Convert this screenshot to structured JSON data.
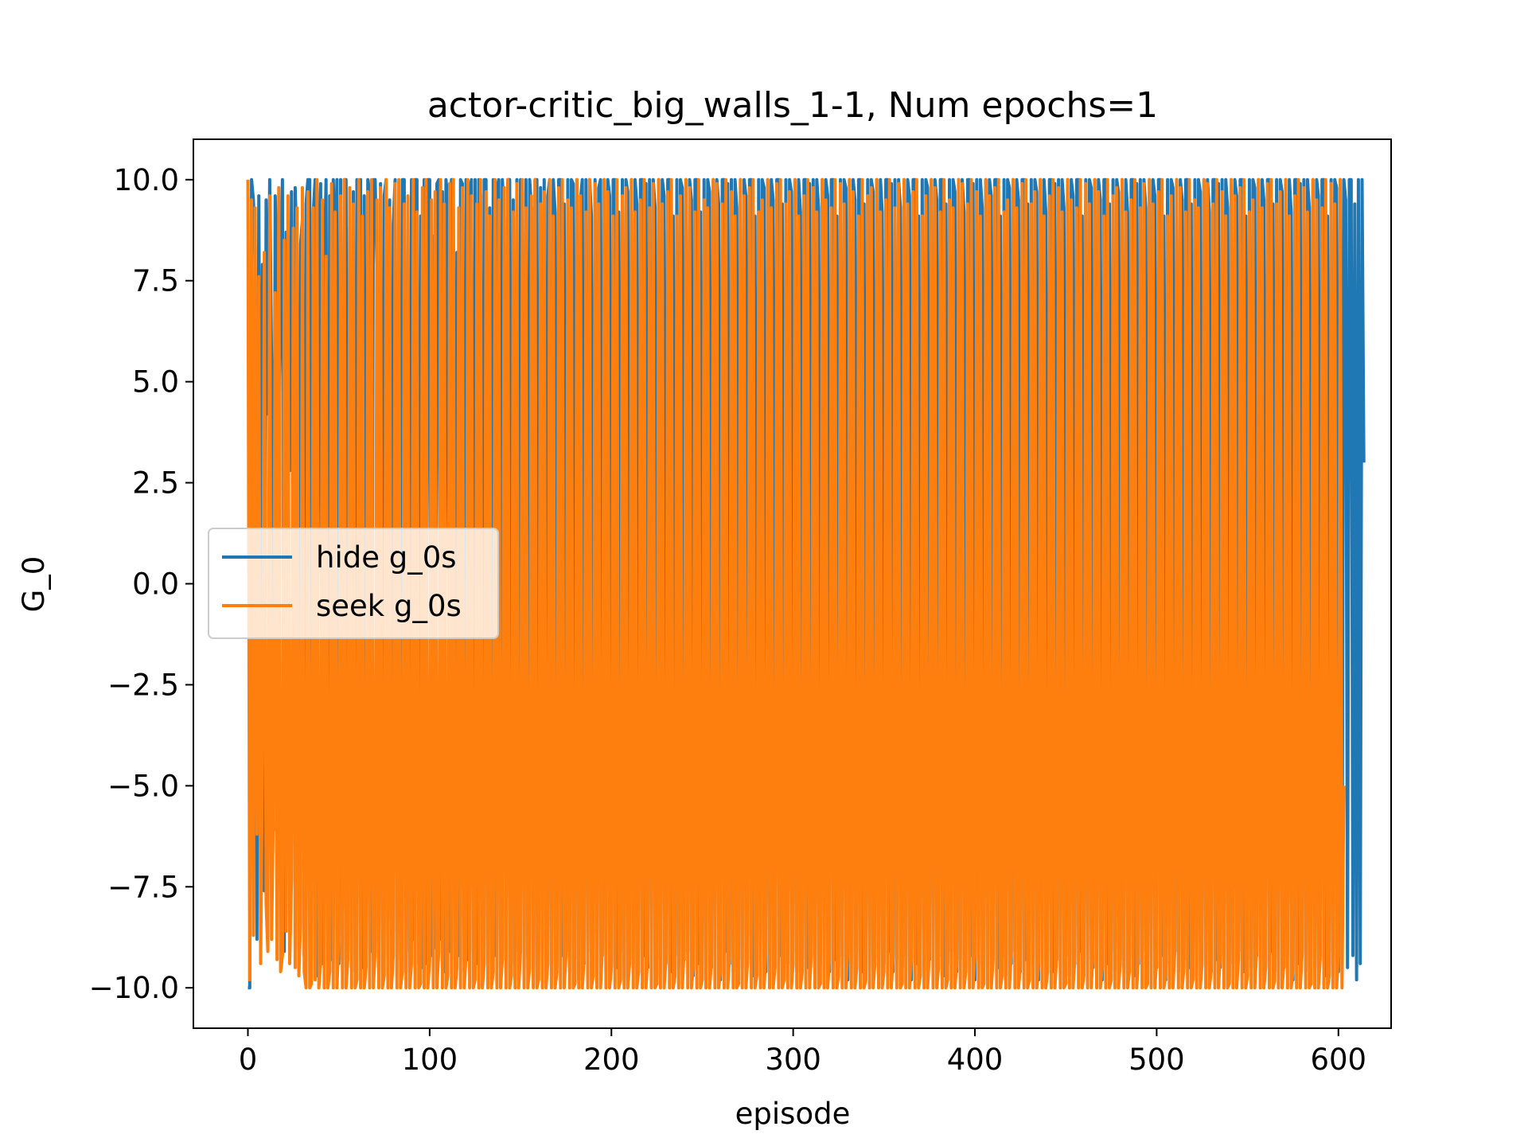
{
  "chart_data": {
    "type": "line",
    "title": "actor-critic_big_walls_1-1, Num epochs=1",
    "xlabel": "episode",
    "ylabel": "G_0",
    "xlim": [
      -30,
      629
    ],
    "ylim": [
      -11,
      11
    ],
    "xticks": [
      0,
      100,
      200,
      300,
      400,
      500,
      600
    ],
    "yticks": [
      10.0,
      7.5,
      5.0,
      2.5,
      0.0,
      -2.5,
      -5.0,
      -7.5,
      -10.0
    ],
    "xtick_labels": [
      "0",
      "100",
      "200",
      "300",
      "400",
      "500",
      "600"
    ],
    "ytick_labels": [
      "10.0",
      "7.5",
      "5.0",
      "2.5",
      "0.0",
      "−2.5",
      "−5.0",
      "−7.5",
      "−10.0"
    ],
    "legend_position": "center-left",
    "series": [
      {
        "name": "hide g_0s",
        "color": "#1f77b4",
        "x_start": 0,
        "x_step": 1,
        "values": [
          -10,
          -10,
          10,
          9.5,
          7.8,
          -8.8,
          9.6,
          -1.5,
          7.9,
          -7.6,
          9.5,
          4.2,
          10,
          5.5,
          -6.1,
          9.6,
          8,
          4.2,
          7.1,
          10,
          -9.1,
          8.7,
          8.6,
          2.8,
          9.7,
          -2.4,
          9.8,
          8.1,
          -9.1,
          8.4,
          9,
          -9.2,
          9.4,
          10,
          10,
          -8.3,
          9.2,
          10,
          -9.7,
          8.5,
          9.9,
          -9.4,
          7.6,
          10,
          -9,
          9.6,
          -9.3,
          10,
          7.5,
          10,
          -9.4,
          10,
          -9.3,
          10,
          10,
          -9.1,
          8.8,
          -7.8,
          9.7,
          -9.6,
          10,
          7.3,
          10,
          -9.5,
          9.6,
          -9.1,
          10,
          9.7,
          -9.1,
          10,
          10,
          7.7,
          -9.5,
          9.9,
          -9.4,
          9.6,
          10,
          -9.2,
          9.5,
          -8.3,
          8.9,
          10,
          -8.6,
          7.8,
          -9.3,
          10,
          10,
          -9.6,
          9.4,
          -9.1,
          10,
          -8.8,
          10,
          10,
          -9.4,
          9.1,
          -9.5,
          10,
          -9.4,
          10,
          10,
          -9.2,
          8.6,
          -9,
          9.9,
          10,
          -8.8,
          9.7,
          -9.6,
          10,
          9.5,
          -9.1,
          10,
          10,
          -9.3,
          8.2,
          -9.2,
          10,
          9.9,
          -9.6,
          10,
          -9.3,
          9.7,
          10,
          -9.1,
          10,
          -9.4,
          10,
          9.6,
          -8.9,
          10,
          10,
          -9.7,
          9.3,
          -9.5,
          10,
          -9.2,
          9.8,
          10,
          -9.6,
          10,
          9.1,
          -9.3,
          10,
          10,
          -9.4,
          9.5,
          -9.8,
          10,
          -9.1,
          10,
          9.7,
          -9.5,
          10,
          -9.2,
          10,
          9.3,
          -9.6,
          10,
          10,
          -9.1,
          9.8,
          -9.4,
          10,
          -9.3,
          9.6,
          10,
          -9.7,
          10,
          9.2,
          -9.5,
          10,
          10,
          -9.2,
          9.4,
          -9.1,
          10,
          -9.6,
          10,
          9.9,
          -9.3,
          10,
          -9.8,
          9.5,
          10,
          -9.4,
          10,
          -9.1,
          10,
          9.1,
          -9.7,
          10,
          -9.3,
          9.8,
          10,
          -9.2,
          10,
          -9.6,
          10,
          9.6,
          -9.4,
          10,
          10,
          -9.5,
          9.2,
          -9.1,
          10,
          -9.8,
          10,
          9.7,
          -9.3,
          10,
          -9.4,
          10,
          9.4,
          -9.6,
          10,
          10,
          -9.2,
          9.9,
          -9.5,
          10,
          -9.1,
          10,
          9.3,
          -9.7,
          10,
          -9.3,
          10,
          9.6,
          -9.4,
          10,
          10,
          -9.6,
          9.1,
          -9.2,
          10,
          -9.5,
          10,
          9.8,
          -9.3,
          10,
          -9.1,
          10,
          9.5,
          -9.7,
          10,
          10,
          -9.4,
          9.2,
          -9.6,
          10,
          -9.3,
          10,
          9.7,
          -9.5,
          10,
          -9.2,
          10,
          9.4,
          -9.8,
          10,
          10,
          -9.1,
          9.9,
          -9.4,
          10,
          -9.6,
          10,
          9.3,
          -9.3,
          10,
          -9.5,
          10,
          9.6,
          -9.2,
          10,
          10,
          -9.7,
          9.1,
          -9.4,
          10,
          -9.1,
          10,
          9.8,
          -9.6,
          10,
          -9.3,
          10,
          9.5,
          -9.5,
          10,
          10,
          -9.2,
          9.4,
          -9.8,
          10,
          -9.4,
          10,
          9.7,
          -9.1,
          10,
          -9.6,
          10,
          9.2,
          -9.3,
          10,
          10,
          -9.5,
          9.9,
          -9.2,
          10,
          -9.7,
          10,
          9.3,
          -9.4,
          10,
          -9.1,
          10,
          9.6,
          -9.6,
          10,
          10,
          -9.3,
          9.1,
          -9.5,
          10,
          -9.2,
          10,
          9.8,
          -9.8,
          10,
          -9.4,
          10,
          9.5,
          -9.1,
          10,
          10,
          -9.6,
          9.4,
          -9.3,
          10,
          -9.5,
          10,
          9.7,
          -9.2,
          10,
          -9.7,
          10,
          9.2,
          -9.4,
          10,
          10,
          -9.1,
          9.9,
          -9.6,
          10,
          -9.3,
          10,
          9.3,
          -9.5,
          10,
          -9.2,
          10,
          9.6,
          -9.8,
          10,
          10,
          -9.4,
          9.1,
          -9.1,
          10,
          -9.6,
          10,
          9.8,
          -9.3,
          10,
          -9.5,
          10,
          9.5,
          -9.2,
          10,
          10,
          -9.7,
          9.4,
          -9.4,
          10,
          -9.1,
          10,
          9.7,
          -9.6,
          10,
          -9.3,
          10,
          9.2,
          -9.5,
          10,
          10,
          -9.2,
          9.9,
          -9.8,
          10,
          -9.4,
          10,
          9.3,
          -9.1,
          10,
          -9.6,
          10,
          9.6,
          -9.3,
          10,
          10,
          -9.5,
          9.1,
          -9.2,
          10,
          -9.7,
          10,
          9.8,
          -9.4,
          10,
          -9.1,
          10,
          9.5,
          -9.6,
          10,
          10,
          -9.3,
          9.4,
          -9.5,
          10,
          -9.2,
          10,
          9.7,
          -9.8,
          10,
          -9.4,
          10,
          9.2,
          -9.1,
          10,
          10,
          -9.6,
          9.9,
          -9.3,
          10,
          -9.5,
          10,
          9.3,
          -9.2,
          10,
          -9.7,
          10,
          9.6,
          -9.4,
          10,
          10,
          -9.1,
          9.1,
          -9.6,
          10,
          -9.3,
          10,
          9.8,
          -9.5,
          10,
          -9.2,
          10,
          9.5,
          -9.8,
          10,
          10,
          -9.4,
          9.4,
          -9.1,
          10,
          -9.6,
          10,
          9.7,
          -9.3,
          10,
          -9.5,
          10,
          9.2,
          -9.2,
          10,
          10,
          -9.7,
          9.9,
          -9.4,
          10,
          -9.1,
          10,
          9.3,
          -9.6,
          10,
          -9.3,
          10,
          9.6,
          -9.5,
          10,
          10,
          -9.2,
          9.1,
          -9.8,
          10,
          -9.4,
          10,
          9.8,
          -9.1,
          10,
          -9.6,
          10,
          9.5,
          -9.3,
          10,
          10,
          -9.5,
          9.4,
          -9.2,
          10,
          -9.7,
          10,
          9.7,
          -9.4,
          10,
          -9.1,
          10,
          9.2,
          -9.6,
          10,
          10,
          -9.3,
          9.9,
          -9.5,
          10,
          -9.2,
          10,
          9.3,
          -9.8,
          10,
          -9.4,
          10,
          9.6,
          -9.1,
          10,
          10,
          -9.6,
          9.1,
          -9.3,
          10,
          -9.5,
          10,
          9.8,
          -9.2,
          10,
          -9.7,
          10,
          9.5,
          -9.4,
          10,
          10,
          -9.1,
          9.4,
          -9.6,
          10,
          -9.3,
          10,
          9.7,
          -9.5,
          10,
          -9.2,
          10,
          9.2,
          -9.8,
          10,
          10,
          -9.4,
          9.9,
          -9.1,
          10,
          -9.6,
          10,
          9.3,
          -9.3,
          10,
          -9.5,
          10,
          9.6,
          -9.2,
          10,
          10,
          -9.7,
          9.1,
          -9.4,
          10,
          -9.1,
          10,
          9.8,
          -9.6,
          10,
          -9.3,
          10,
          9.5,
          -9.5,
          10,
          10,
          -9.2,
          9.4,
          -9.8,
          10,
          -9.4,
          10,
          3
        ]
      },
      {
        "name": "seek g_0s",
        "color": "#ff7f0e",
        "x_start": 0,
        "x_step": 1,
        "values": [
          10,
          -9.8,
          9.5,
          -8.7,
          9.3,
          -6.2,
          7.6,
          -9.4,
          -4.3,
          8.2,
          -7.9,
          -9.1,
          9.6,
          -8.8,
          -5.7,
          7.2,
          -9.3,
          9.8,
          -9.6,
          -9.2,
          8.5,
          -8.6,
          9.6,
          -9.4,
          -7.3,
          8.8,
          -9.5,
          9.3,
          -9.7,
          -8.4,
          9.8,
          -9.6,
          -10,
          9.7,
          -10,
          -9.9,
          9.3,
          -9.8,
          10,
          -10,
          -9.4,
          9.5,
          -10,
          8.1,
          -10,
          -9.6,
          9.9,
          -10,
          9.2,
          -10,
          -8.7,
          9.6,
          -10,
          10,
          -10,
          -9.3,
          9.8,
          -10,
          9.4,
          -10,
          -9.8,
          10,
          -10,
          9.1,
          -10,
          -9.5,
          9.7,
          -10,
          10,
          -10,
          -9.1,
          9.5,
          -10,
          9.8,
          -10,
          -9.7,
          10,
          -10,
          9.3,
          -10,
          -9.2,
          9.9,
          -10,
          10,
          -10,
          -9.6,
          9.4,
          -10,
          9.6,
          -10,
          -9.4,
          10,
          -10,
          9.2,
          -10,
          -9.9,
          9.8,
          -10,
          10,
          -10,
          -9.3,
          9.5,
          -10,
          9.7,
          -10,
          -9.1,
          10,
          -10,
          9.4,
          -10,
          -9.7,
          9.9,
          -10,
          10,
          -10,
          -9.5,
          9.3,
          -10,
          9.8,
          -10,
          -9.2,
          10,
          -10,
          9.6,
          -10,
          -9.8,
          9.4,
          -10,
          10,
          -10,
          -9.4,
          9.7,
          -10,
          9.1,
          -10,
          -9.6,
          10,
          -10,
          9.5,
          -10,
          -9.3,
          9.8,
          -10,
          10,
          -10,
          -9.7,
          9.2,
          -10,
          9.9,
          -10,
          -9.1,
          10,
          -10,
          9.3,
          -10,
          -9.5,
          9.6,
          -10,
          10,
          -10,
          -9.8,
          9.4,
          -10,
          9.7,
          -10,
          -9.4,
          10,
          -10,
          9.1,
          -10,
          -9.6,
          9.8,
          -10,
          10,
          -10,
          -9.2,
          9.5,
          -10,
          9.3,
          -10,
          -9.9,
          10,
          -10,
          9.6,
          -10,
          -9.3,
          9.2,
          -10,
          10,
          -10,
          -9.7,
          9.9,
          -10,
          9.4,
          -10,
          -9.1,
          10,
          -10,
          9.7,
          -10,
          -9.5,
          9.1,
          -10,
          10,
          -10,
          -9.8,
          9.6,
          -10,
          9.8,
          -10,
          -9.4,
          10,
          -10,
          9.2,
          -10,
          -9.6,
          9.5,
          -10,
          10,
          -10,
          -9.2,
          9.3,
          -10,
          9.9,
          -10,
          -9.9,
          10,
          -10,
          9.4,
          -10,
          -9.3,
          9.7,
          -10,
          10,
          -10,
          -9.7,
          9.1,
          -10,
          9.6,
          -10,
          -9.1,
          10,
          -10,
          9.8,
          -10,
          -9.5,
          9.2,
          -10,
          10,
          -10,
          -9.8,
          9.5,
          -10,
          9.3,
          -10,
          -9.4,
          10,
          -10,
          9.9,
          -10,
          -9.6,
          9.4,
          -10,
          10,
          -10,
          -9.2,
          9.7,
          -10,
          9.1,
          -10,
          -9.9,
          10,
          -10,
          9.6,
          -10,
          -9.3,
          9.8,
          -10,
          10,
          -10,
          -9.7,
          9.2,
          -10,
          9.5,
          -10,
          -9.1,
          10,
          -10,
          9.3,
          -10,
          -9.5,
          9.9,
          -10,
          10,
          -10,
          -9.8,
          9.4,
          -10,
          9.7,
          -10,
          -9.4,
          10,
          -10,
          9.1,
          -10,
          -9.6,
          9.6,
          -10,
          10,
          -10,
          -9.2,
          9.8,
          -10,
          9.2,
          -10,
          -9.9,
          10,
          -10,
          9.5,
          -10,
          -9.3,
          9.3,
          -10,
          10,
          -10,
          -9.7,
          9.9,
          -10,
          9.4,
          -10,
          -9.1,
          10,
          -10,
          9.7,
          -10,
          -9.5,
          9.1,
          -10,
          10,
          -10,
          -9.8,
          9.6,
          -10,
          9.8,
          -10,
          -9.4,
          10,
          -10,
          9.2,
          -10,
          -9.6,
          9.5,
          -10,
          10,
          -10,
          -9.2,
          9.3,
          -10,
          9.9,
          -10,
          -9.9,
          10,
          -10,
          9.4,
          -10,
          -9.3,
          9.7,
          -10,
          10,
          -10,
          -9.7,
          9.1,
          -10,
          9.6,
          -10,
          -9.1,
          10,
          -10,
          9.8,
          -10,
          -9.5,
          9.2,
          -10,
          10,
          -10,
          -9.8,
          9.5,
          -10,
          9.3,
          -10,
          -9.4,
          10,
          -10,
          9.9,
          -10,
          -9.6,
          9.4,
          -10,
          10,
          -10,
          -9.2,
          9.7,
          -10,
          9.1,
          -10,
          -9.9,
          10,
          -10,
          9.6,
          -10,
          -9.3,
          9.8,
          -10,
          10,
          -10,
          -9.7,
          9.2,
          -10,
          9.5,
          -10,
          -9.1,
          10,
          -10,
          9.3,
          -10,
          -9.5,
          9.9,
          -10,
          10,
          -10,
          -9.8,
          9.4,
          -10,
          9.7,
          -10,
          -9.4,
          10,
          -10,
          9.1,
          -10,
          -9.6,
          9.6,
          -10,
          10,
          -10,
          -9.2,
          9.8,
          -10,
          9.2,
          -10,
          -9.9,
          10,
          -10,
          9.5,
          -10,
          -9.3,
          9.3,
          -10,
          10,
          -10,
          -9.7,
          9.9,
          -10,
          9.4,
          -10,
          -9.1,
          10,
          -10,
          9.7,
          -10,
          -9.5,
          9.1,
          -10,
          10,
          -10,
          -9.8,
          9.6,
          -10,
          9.8,
          -10,
          -9.4,
          10,
          -10,
          9.2,
          -10,
          -9.6,
          9.5,
          -10,
          10,
          -10,
          -9.2,
          9.3,
          -10,
          9.9,
          -10,
          -9.9,
          10,
          -10,
          9.4,
          -10,
          -9.3,
          9.7,
          -10,
          10,
          -10,
          -9.7,
          9.1,
          -10,
          9.6,
          -10,
          -9.1,
          10,
          -10,
          9.8,
          -10,
          -9.5,
          9.2,
          -10,
          10,
          -10,
          -9.8,
          9.5,
          -10,
          9.3,
          -10,
          -9.4,
          10,
          -10,
          9.9,
          -10,
          -9.6,
          9.4,
          -10,
          10,
          -10,
          -9.2,
          9.7,
          -10,
          9.1,
          -10,
          -9.9,
          10,
          -10,
          9.6,
          -10,
          -9.3,
          9.8,
          -10,
          10,
          -10,
          -9.7,
          9.2,
          -10,
          9.5,
          -10,
          -9.1,
          10,
          -10,
          9.3,
          -10,
          -9.5,
          9.9,
          -10,
          10,
          -10,
          -9.8,
          9.4,
          -10,
          9.7,
          -10,
          -9.4,
          10,
          -10,
          9.1,
          -10,
          -9.6,
          9.6,
          -10,
          10,
          -10,
          -9.2,
          9.8,
          -10,
          9.2,
          -10,
          -9.9,
          10,
          -10,
          9.5,
          -10,
          -9.3,
          9.3,
          -10,
          10,
          -10,
          -9.7,
          9.9,
          -10,
          9.4,
          -10,
          -9.1,
          10,
          -10,
          -5
        ]
      }
    ]
  }
}
